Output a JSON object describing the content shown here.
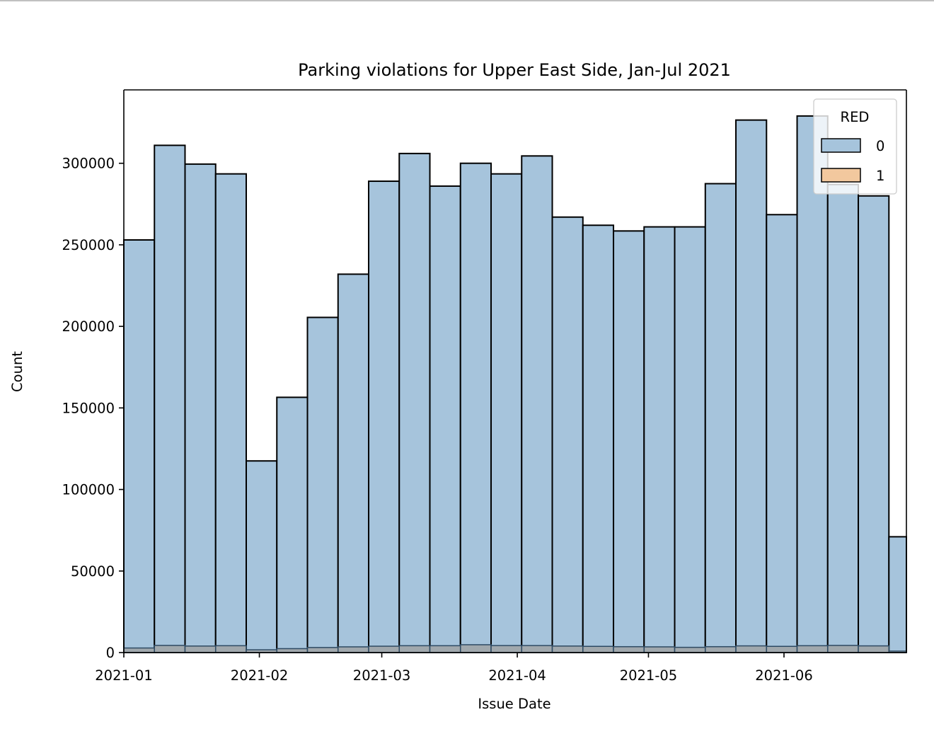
{
  "chart_data": {
    "type": "bar",
    "title": "Parking violations for Upper East Side, Jan-Jul 2021",
    "xlabel": "Issue Date",
    "ylabel": "Count",
    "xlim": [
      "2021-01-01",
      "2021-06-29"
    ],
    "ylim": [
      0,
      345000
    ],
    "xticks": [
      "2021-01",
      "2021-02",
      "2021-03",
      "2021-04",
      "2021-05",
      "2021-06"
    ],
    "yticks": [
      0,
      50000,
      100000,
      150000,
      200000,
      250000,
      300000
    ],
    "yticklabels": [
      "0",
      "50000",
      "100000",
      "150000",
      "200000",
      "250000",
      "300000"
    ],
    "grid": false,
    "legend": {
      "title": "RED",
      "position": "top-right",
      "entries": [
        "0",
        "1"
      ]
    },
    "bin_width_days": 7,
    "bin_starts": [
      "2021-01-01",
      "2021-01-08",
      "2021-01-15",
      "2021-01-22",
      "2021-01-29",
      "2021-02-05",
      "2021-02-12",
      "2021-02-19",
      "2021-02-26",
      "2021-03-05",
      "2021-03-12",
      "2021-03-19",
      "2021-03-26",
      "2021-04-02",
      "2021-04-09",
      "2021-04-16",
      "2021-04-23",
      "2021-04-30",
      "2021-05-07",
      "2021-05-14",
      "2021-05-21",
      "2021-05-28",
      "2021-06-04",
      "2021-06-11",
      "2021-06-18",
      "2021-06-25"
    ],
    "series": [
      {
        "name": "0",
        "color": "#a6c4dc",
        "values": [
          253000,
          311000,
          299500,
          293500,
          117500,
          156500,
          205500,
          232000,
          289000,
          306000,
          286000,
          300000,
          293500,
          304500,
          267000,
          262000,
          258500,
          261000,
          261000,
          287500,
          326500,
          268500,
          329000,
          287000,
          280000,
          71000
        ]
      },
      {
        "name": "1",
        "color": "#f2c89e",
        "values": [
          2800,
          4400,
          4000,
          4200,
          1700,
          2400,
          3100,
          3500,
          3900,
          4200,
          4200,
          4800,
          4300,
          4300,
          4000,
          3800,
          3600,
          3500,
          3200,
          3600,
          4100,
          3800,
          4200,
          4400,
          4100,
          900
        ]
      }
    ]
  }
}
